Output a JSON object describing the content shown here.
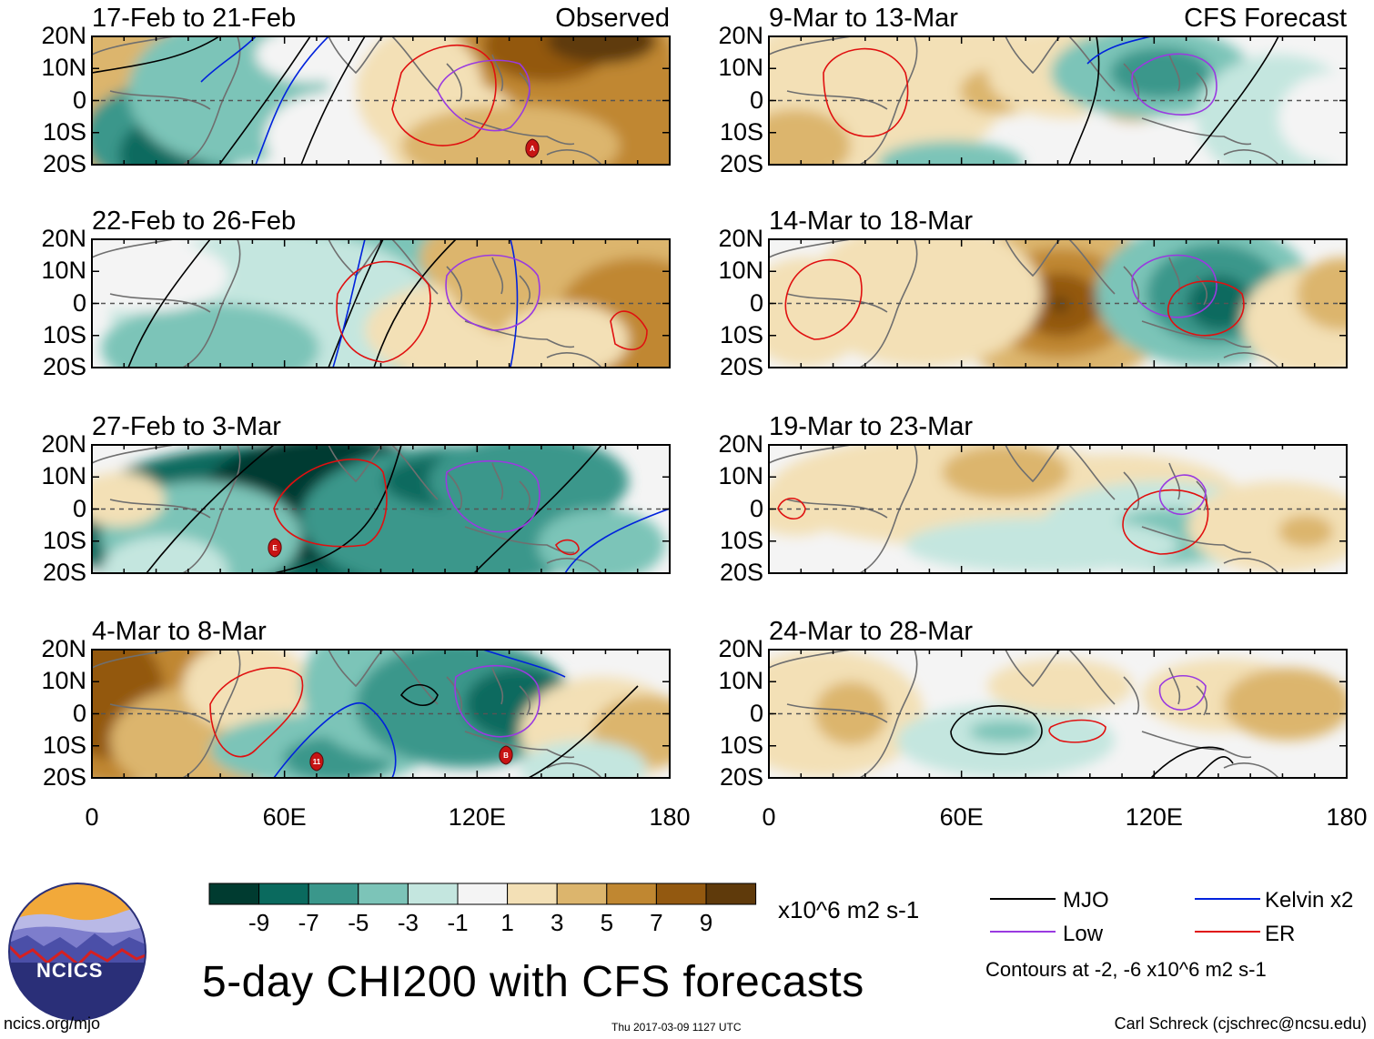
{
  "figure": {
    "title": "5-day CHI200 with CFS forecasts",
    "observed_label": "Observed",
    "forecast_label": "CFS Forecast",
    "lat_ticks": [
      "20N",
      "10N",
      "0",
      "10S",
      "20S"
    ],
    "lon_ticks": [
      "0",
      "60E",
      "120E",
      "180"
    ],
    "panels": [
      {
        "id": "p1",
        "title": "17-Feb to 21-Feb",
        "column": "observed",
        "row": 1
      },
      {
        "id": "p2",
        "title": "22-Feb to 26-Feb",
        "column": "observed",
        "row": 2
      },
      {
        "id": "p3",
        "title": "27-Feb to 3-Mar",
        "column": "observed",
        "row": 3
      },
      {
        "id": "p4",
        "title": "4-Mar to 8-Mar",
        "column": "observed",
        "row": 4
      },
      {
        "id": "p5",
        "title": "9-Mar to 13-Mar",
        "column": "forecast",
        "row": 1
      },
      {
        "id": "p6",
        "title": "14-Mar to 18-Mar",
        "column": "forecast",
        "row": 2
      },
      {
        "id": "p7",
        "title": "19-Mar to 23-Mar",
        "column": "forecast",
        "row": 3
      },
      {
        "id": "p8",
        "title": "24-Mar to 28-Mar",
        "column": "forecast",
        "row": 4
      }
    ],
    "storm_markers": [
      {
        "panel": "p1",
        "label": "A"
      },
      {
        "panel": "p3",
        "label": "E"
      },
      {
        "panel": "p4",
        "label": "11"
      },
      {
        "panel": "p4",
        "label": "B"
      }
    ]
  },
  "colorbar": {
    "unit": "x10^6 m2 s-1",
    "labels": [
      "-9",
      "-7",
      "-5",
      "-3",
      "-1",
      "1",
      "3",
      "5",
      "7",
      "9"
    ],
    "colors": [
      "#003b30",
      "#0a6a5e",
      "#3a978b",
      "#7cc4b8",
      "#c4e6df",
      "#f4f4f4",
      "#f3e0b6",
      "#dcb56d",
      "#c08731",
      "#935910",
      "#5f3a0b"
    ]
  },
  "legend": {
    "items": [
      {
        "label": "MJO",
        "color": "#000000"
      },
      {
        "label": "Kelvin x2",
        "color": "#0022dd"
      },
      {
        "label": "Low",
        "color": "#9a3ae0"
      },
      {
        "label": "ER",
        "color": "#e01010"
      }
    ],
    "contour_note": "Contours at -2, -6 x10^6 m2 s-1"
  },
  "branding": {
    "logo_text": "NCICS",
    "url": "ncics.org/mjo",
    "timestamp": "Thu 2017-03-09 1127 UTC",
    "credit": "Carl Schreck (cjschrec@ncsu.edu)"
  }
}
